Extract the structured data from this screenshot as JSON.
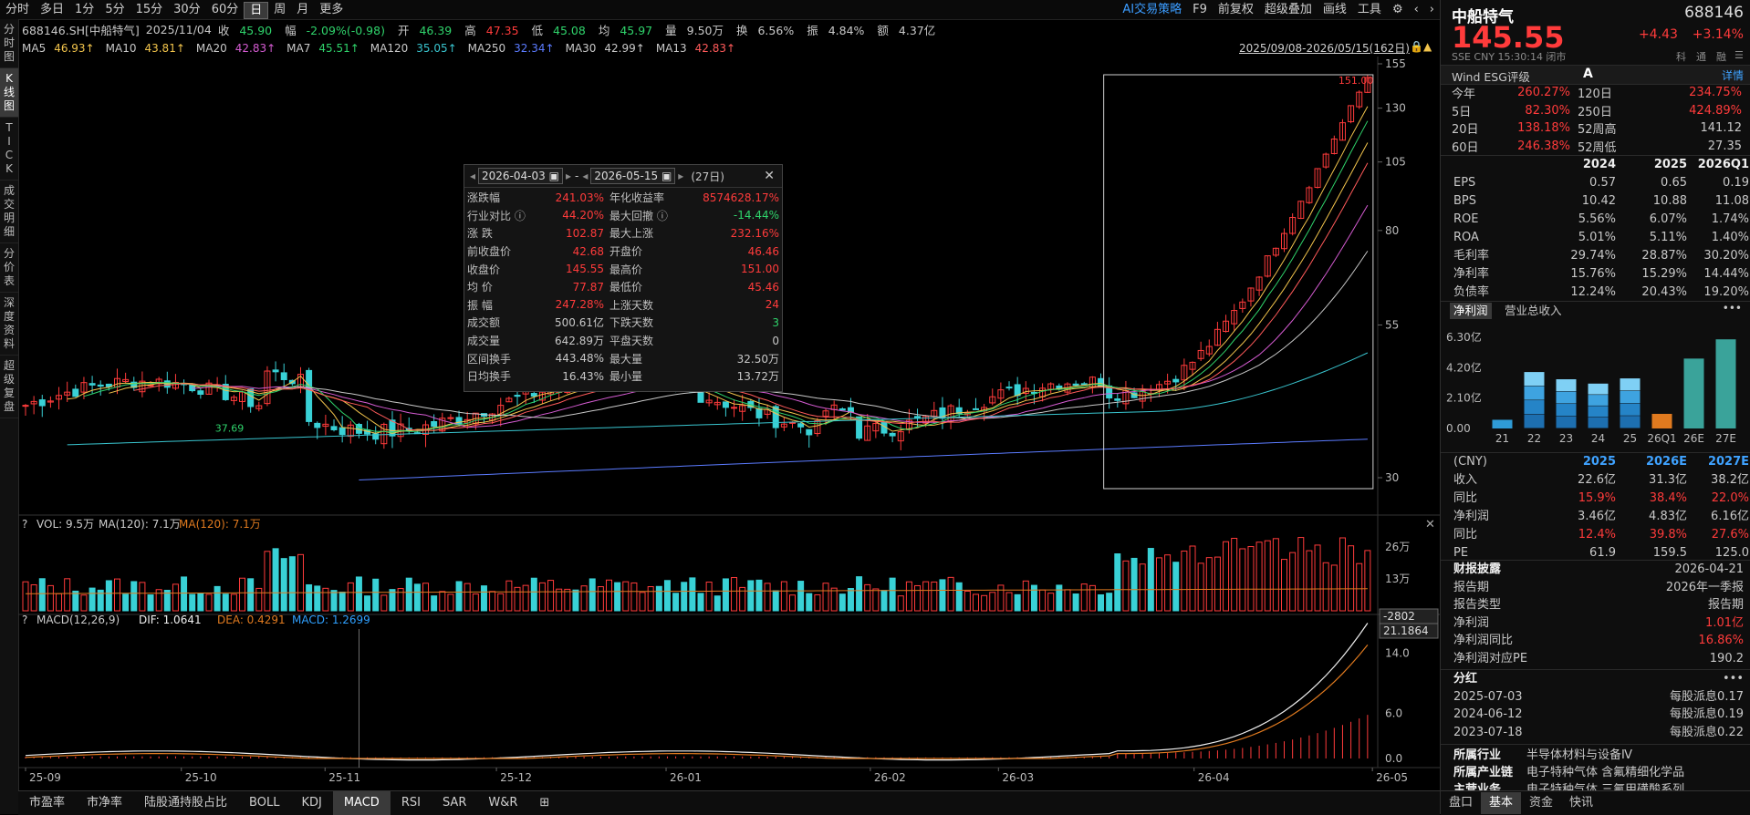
{
  "toolbar": {
    "periods": [
      "分时",
      "多日",
      "1分",
      "5分",
      "15分",
      "30分",
      "60分",
      "日",
      "周",
      "月",
      "更多"
    ],
    "active_period": "日",
    "right_items": [
      "AI交易策略",
      "F9",
      "前复权",
      "超级叠加",
      "画线",
      "工具"
    ]
  },
  "left_tabs": [
    "分时图",
    "K线图",
    "TICK",
    "成交明细",
    "分价表",
    "深度资料",
    "超级复盘"
  ],
  "quote": {
    "code_name": "688146.SH[中船特气]",
    "date": "2025/11/04",
    "close_label": "收",
    "close": "45.90",
    "range_label": "幅",
    "range": "-2.09%(-0.98)",
    "open_label": "开",
    "open": "46.39",
    "high_label": "高",
    "high": "47.35",
    "low_label": "低",
    "low": "45.08",
    "avg_label": "均",
    "avg": "45.97",
    "vol_label": "量",
    "vol": "9.50万",
    "turn_label": "换",
    "turn": "6.56%",
    "amp_label": "振",
    "amp": "4.84%",
    "amt_label": "额",
    "amt": "4.37亿"
  },
  "ma_line": [
    {
      "label": "MA5",
      "value": "46.93↑",
      "color": "#f2c44c"
    },
    {
      "label": "MA10",
      "value": "43.81↑",
      "color": "#f2c44c"
    },
    {
      "label": "MA20",
      "value": "42.83↑",
      "color": "#d45bd1"
    },
    {
      "label": "MA7",
      "value": "45.51↑",
      "color": "#2fd36b"
    },
    {
      "label": "MA120",
      "value": "35.05↑",
      "color": "#39c5cf"
    },
    {
      "label": "MA250",
      "value": "32.34↑",
      "color": "#5b7bff"
    },
    {
      "label": "MA30",
      "value": "42.99↑",
      "color": "#c8c8c8"
    },
    {
      "label": "MA13",
      "value": "42.83↑",
      "color": "#ff5a5a"
    }
  ],
  "date_range": "2025/09/08-2026/05/15(162日)",
  "price_axis": [
    "155",
    "130",
    "105",
    "80",
    "55",
    "30"
  ],
  "vol_axis": [
    "26万",
    "13万"
  ],
  "macd_axis": [
    "14.0",
    "6.0",
    "0.0"
  ],
  "x_axis": [
    "25-09",
    "25-10",
    "25-11",
    "25-12",
    "26-01",
    "26-02",
    "26-03",
    "26-04",
    "26-05"
  ],
  "annotations": {
    "low_mark": "37.69",
    "high_mark": "151.00"
  },
  "vol_header": {
    "q": "?",
    "text1": "VOL: 9.5万",
    "text2": "MA(120): 7.1万",
    "text3": "MA(120): 7.1万"
  },
  "vol_cursor_value": "-2802",
  "macd_cursor_value": "21.1864",
  "macd_header": {
    "q": "?",
    "name": "MACD(12,26,9)",
    "dif": "DIF: 1.0641",
    "dea": "DEA: 0.4291",
    "macd": "MACD: 1.2699"
  },
  "popup": {
    "start": "2026-04-03",
    "end": "2026-05-15",
    "days": "(27日)",
    "rows": [
      [
        "涨跌幅",
        "241.03%",
        "up",
        "年化收益率",
        "8574628.17%",
        "up"
      ],
      [
        "行业对比 ⓘ",
        "44.20%",
        "up",
        "最大回撤 ⓘ",
        "-14.44%",
        "down"
      ],
      [
        "涨  跌",
        "102.87",
        "up",
        "最大上涨",
        "232.16%",
        "up"
      ],
      [
        "前收盘价",
        "42.68",
        "up",
        "开盘价",
        "46.46",
        "up"
      ],
      [
        "收盘价",
        "145.55",
        "up",
        "最高价",
        "151.00",
        "up"
      ],
      [
        "均  价",
        "77.87",
        "up",
        "最低价",
        "45.46",
        "up"
      ],
      [
        "振  幅",
        "247.28%",
        "up",
        "上涨天数",
        "24",
        "up"
      ],
      [
        "成交额",
        "500.61亿",
        "",
        "下跌天数",
        "3",
        "down"
      ],
      [
        "成交量",
        "642.89万",
        "",
        "平盘天数",
        "0",
        ""
      ],
      [
        "区间换手",
        "443.48%",
        "",
        "最大量",
        "32.50万",
        ""
      ],
      [
        "日均换手",
        "16.43%",
        "",
        "最小量",
        "13.72万",
        ""
      ]
    ]
  },
  "bottom_tabs": [
    "市盈率",
    "市净率",
    "陆股通持股占比",
    "BOLL",
    "KDJ",
    "MACD",
    "RSI",
    "SAR",
    "W&R"
  ],
  "bottom_active": "MACD",
  "right": {
    "name": "中船特气",
    "code": "688146",
    "price": "145.55",
    "change": "+4.43",
    "change_pct": "+3.14%",
    "sub": "SSE  CNY  15:30:14  闭市",
    "sub_icons": [
      "科",
      "通",
      "融"
    ],
    "esg_label": "Wind ESG评级",
    "esg_value": "A",
    "esg_detail": "详情",
    "perf": [
      [
        "今年",
        "260.27%",
        "120日",
        "234.75%"
      ],
      [
        "5日",
        "82.30%",
        "250日",
        "424.89%"
      ],
      [
        "20日",
        "138.18%",
        "52周高",
        "141.12"
      ],
      [
        "60日",
        "246.38%",
        "52周低",
        "27.35"
      ]
    ],
    "fin_head": [
      "",
      "2024",
      "2025",
      "2026Q1"
    ],
    "fin_rows": [
      [
        "EPS",
        "0.57",
        "0.65",
        "0.19"
      ],
      [
        "BPS",
        "10.42",
        "10.88",
        "11.08"
      ],
      [
        "ROE",
        "5.56%",
        "6.07%",
        "1.74%"
      ],
      [
        "ROA",
        "5.01%",
        "5.11%",
        "1.40%"
      ],
      [
        "毛利率",
        "29.74%",
        "28.87%",
        "30.20%"
      ],
      [
        "净利率",
        "15.76%",
        "15.29%",
        "14.44%"
      ],
      [
        "负债率",
        "12.24%",
        "20.43%",
        "19.20%"
      ]
    ],
    "chart_tabs": [
      "净利润",
      "营业总收入"
    ],
    "bar_yaxis": [
      "6.30亿",
      "4.20亿",
      "2.10亿",
      "0.00"
    ],
    "bar_xaxis": [
      "21",
      "22",
      "23",
      "24",
      "25",
      "26Q1",
      "26E",
      "27E"
    ],
    "forecast_head": [
      "(CNY)",
      "2025",
      "2026E",
      "2027E"
    ],
    "forecast_rows": [
      [
        "收入",
        "22.6亿",
        "31.3亿",
        "38.2亿"
      ],
      [
        "同比",
        "15.9%",
        "38.4%",
        "22.0%"
      ],
      [
        "净利润",
        "3.46亿",
        "4.83亿",
        "6.16亿"
      ],
      [
        "同比",
        "12.4%",
        "39.8%",
        "27.6%"
      ],
      [
        "PE",
        "61.9",
        "159.5",
        "125.0"
      ]
    ],
    "report_title": "财报披露",
    "report_date": "2026-04-21",
    "report_rows": [
      [
        "报告期",
        "2026年一季报"
      ],
      [
        "报告类型",
        "报告期"
      ],
      [
        "净利润",
        "1.01亿"
      ],
      [
        "净利润同比",
        "16.86%"
      ],
      [
        "净利润对应PE",
        "190.2"
      ]
    ],
    "div_title": "分红",
    "div_rows": [
      [
        "2025-07-03",
        "每股派息0.17"
      ],
      [
        "2024-06-12",
        "每股派息0.19"
      ],
      [
        "2023-07-18",
        "每股派息0.22"
      ]
    ],
    "industry_rows": [
      [
        "所属行业",
        "半导体材料与设备Ⅳ"
      ],
      [
        "所属产业链",
        "电子特种气体  含氟精细化学品"
      ],
      [
        "主营业务",
        "电子特种气体  三氟甲磺酸系列"
      ]
    ],
    "bottom_tabs": [
      "盘口",
      "基本",
      "资金",
      "快讯"
    ],
    "bottom_active": "基本"
  },
  "chart_data": {
    "type": "bar",
    "title": "净利润",
    "categories": [
      "21",
      "22",
      "23",
      "24",
      "25",
      "26Q1",
      "26E",
      "27E"
    ],
    "values": [
      0.6,
      3.9,
      3.4,
      3.1,
      3.46,
      1.01,
      4.83,
      6.16
    ],
    "ylim": [
      0,
      6.3
    ],
    "colors": {
      "actual": "#2f9bd6",
      "q1": "#e07a1f",
      "estimate": "#3aa39a"
    }
  }
}
